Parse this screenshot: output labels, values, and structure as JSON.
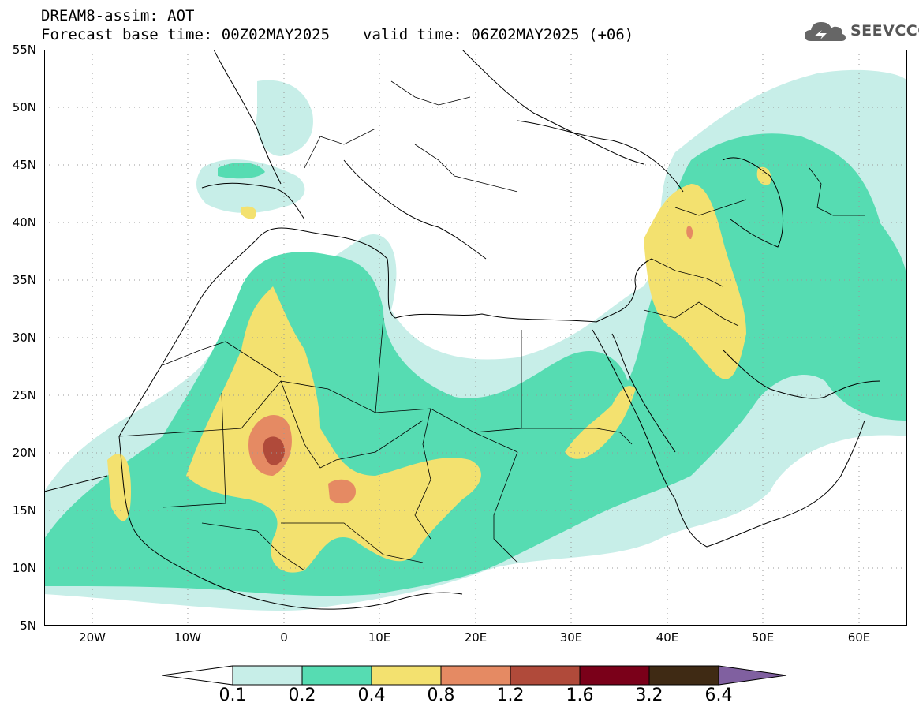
{
  "header": {
    "title": "DREAM8-assim: AOT",
    "base_time": "Forecast base time: 00Z02MAY2025",
    "valid_time": "valid time: 06Z02MAY2025 (+06)"
  },
  "logo": {
    "text": "SEEVCCC",
    "icon": "cloud-icon"
  },
  "map": {
    "lat_labels": [
      "55N",
      "50N",
      "45N",
      "40N",
      "35N",
      "30N",
      "25N",
      "20N",
      "15N",
      "10N",
      "5N"
    ],
    "lon_labels": [
      "20W",
      "10W",
      "0",
      "10E",
      "20E",
      "30E",
      "40E",
      "50E",
      "60E"
    ],
    "lon_range": [
      -25,
      65
    ],
    "lat_range": [
      5,
      55
    ],
    "grid": "dotted"
  },
  "colorbar": {
    "labels": [
      "0.1",
      "0.2",
      "0.4",
      "0.8",
      "1.2",
      "1.6",
      "3.2",
      "6.4"
    ],
    "colors": [
      "#ffffff",
      "#c7eee8",
      "#56dcb2",
      "#f3e16f",
      "#e58a63",
      "#b04a3a",
      "#7a0019",
      "#3f2a14",
      "#8060a0"
    ]
  }
}
